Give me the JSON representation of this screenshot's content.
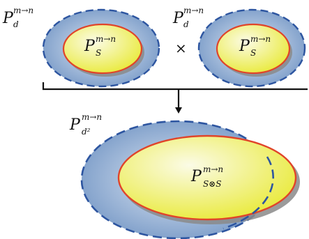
{
  "labels": {
    "outer_left": {
      "main": "P",
      "sub": "d",
      "sup": "m→n"
    },
    "outer_right": {
      "main": "P",
      "sub": "d",
      "sup": "m→n"
    },
    "inner_left": {
      "main": "P",
      "sub": "S",
      "sup": "m→n"
    },
    "inner_right": {
      "main": "P",
      "sub": "S",
      "sup": "m→n"
    },
    "times": "×",
    "outer_bottom": {
      "main": "P",
      "sub": "d²",
      "sup": "m→n"
    },
    "inner_bottom": {
      "main": "P",
      "sub": "S⊗S",
      "sup": "m→n"
    }
  },
  "colors": {
    "outer_fill_light": "#dfe8f4",
    "outer_fill_dark": "#7b9cc8",
    "outer_stroke": "#2d55a0",
    "inner_fill_light": "#fbfbe6",
    "inner_fill_dark": "#e9ea3a",
    "inner_stroke": "#e0442a",
    "shadow": "#8a8a8a",
    "arrow": "#111111"
  }
}
